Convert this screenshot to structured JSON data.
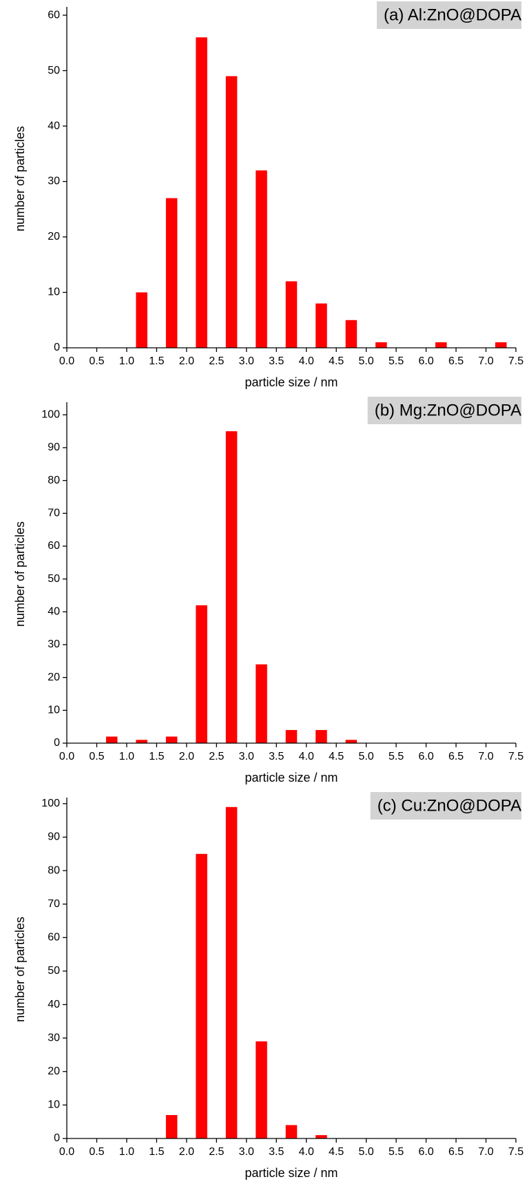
{
  "chart_data": [
    {
      "type": "histogram",
      "title": "(a) Al:ZnO@DOPA",
      "x_label": "particle size / nm",
      "y_label": "number of particles",
      "color": "#ff0000",
      "bins": [
        0,
        0.5,
        1,
        1.5,
        2,
        2.5,
        3,
        3.5,
        4,
        4.5,
        5,
        5.5,
        6,
        6.5,
        7,
        7.5
      ],
      "values": [
        0,
        0,
        10,
        27,
        56,
        49,
        32,
        12,
        8,
        5,
        1,
        0,
        1,
        0,
        1
      ],
      "xlim": [
        0,
        7.5
      ],
      "ylim": [
        0,
        61
      ],
      "xticks": [
        {
          "value": 0,
          "label": "0.0"
        },
        0.5,
        {
          "value": 1,
          "label": "1.0"
        },
        1.5,
        {
          "value": 2,
          "label": "2.0"
        },
        2.5,
        {
          "value": 3,
          "label": "3.0"
        },
        3.5,
        {
          "value": 4,
          "label": "4.0"
        },
        4.5,
        {
          "value": 5,
          "label": "5.0"
        },
        5.5,
        {
          "value": 6,
          "label": "6.0"
        },
        6.5,
        {
          "value": 7,
          "label": "7.0"
        },
        7.5
      ],
      "yticks": [
        0,
        10,
        20,
        30,
        40,
        50,
        60
      ]
    },
    {
      "type": "histogram",
      "title": "(b) Mg:ZnO@DOPA",
      "x_label": "particle size / nm",
      "y_label": "number of particles",
      "color": "#ff0000",
      "bins": [
        0,
        0.5,
        1,
        1.5,
        2,
        2.5,
        3,
        3.5,
        4,
        4.5,
        5,
        5.5,
        6,
        6.5,
        7,
        7.5
      ],
      "values": [
        0,
        2,
        1,
        2,
        42,
        95,
        24,
        4,
        4,
        1,
        0,
        0,
        0,
        0,
        0
      ],
      "xlim": [
        0,
        7.5
      ],
      "ylim": [
        0,
        103
      ],
      "xticks": [
        {
          "value": 0,
          "label": "0.0"
        },
        0.5,
        {
          "value": 1,
          "label": "1.0"
        },
        1.5,
        {
          "value": 2,
          "label": "2.0"
        },
        2.5,
        {
          "value": 3,
          "label": "3.0"
        },
        3.5,
        {
          "value": 4,
          "label": "4.0"
        },
        4.5,
        {
          "value": 5,
          "label": "5.0"
        },
        5.5,
        {
          "value": 6,
          "label": "6.0"
        },
        6.5,
        {
          "value": 7,
          "label": "7.0"
        },
        7.5
      ],
      "yticks": [
        0,
        10,
        20,
        30,
        40,
        50,
        60,
        70,
        80,
        90,
        100
      ]
    },
    {
      "type": "histogram",
      "title": "(c) Cu:ZnO@DOPA",
      "x_label": "particle size / nm",
      "y_label": "number of particles",
      "color": "#ff0000",
      "bins": [
        0,
        0.5,
        1,
        1.5,
        2,
        2.5,
        3,
        3.5,
        4,
        4.5,
        5,
        5.5,
        6,
        6.5,
        7,
        7.5
      ],
      "values": [
        0,
        0,
        0,
        7,
        85,
        99,
        29,
        4,
        1,
        0,
        0,
        0,
        0,
        0,
        0
      ],
      "xlim": [
        0,
        7.5
      ],
      "ylim": [
        0,
        101
      ],
      "xticks": [
        {
          "value": 0,
          "label": "0.0"
        },
        0.5,
        {
          "value": 1,
          "label": "1.0"
        },
        1.5,
        {
          "value": 2,
          "label": "2.0"
        },
        2.5,
        {
          "value": 3,
          "label": "3.0"
        },
        3.5,
        {
          "value": 4,
          "label": "4.0"
        },
        4.5,
        {
          "value": 5,
          "label": "5.0"
        },
        5.5,
        {
          "value": 6,
          "label": "6.0"
        },
        6.5,
        {
          "value": 7,
          "label": "7.0"
        },
        7.5
      ],
      "yticks": [
        0,
        10,
        20,
        30,
        40,
        50,
        60,
        70,
        80,
        90,
        100
      ]
    }
  ]
}
